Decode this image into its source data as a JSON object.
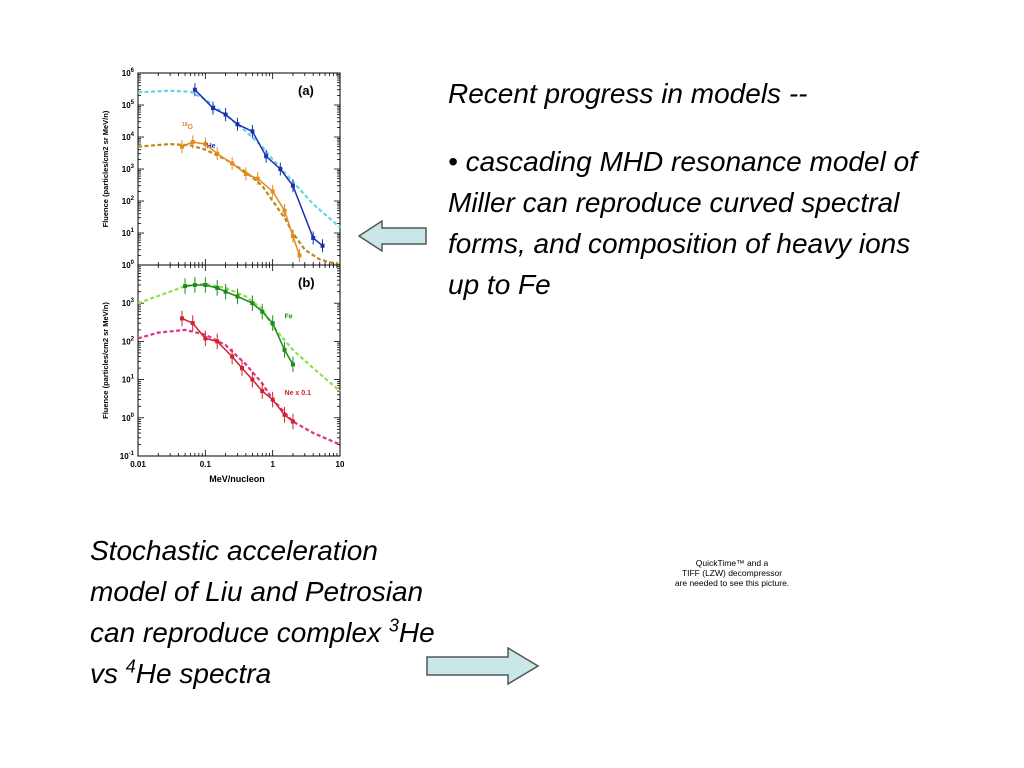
{
  "slide": {
    "heading": "Recent progress in models --",
    "bullet_text": "• cascading MHD resonance model of Miller can reproduce curved spectral forms, and composition of heavy ions up to Fe",
    "caption": {
      "line1": "Stochastic acceleration",
      "line2": "model of Liu and Petrosian",
      "line3_pre": "can reproduce complex ",
      "line3_sup": "3",
      "line3_post": "He",
      "line4_pre": "vs ",
      "line4_sup": "4",
      "line4_post": "He spectra"
    },
    "quicktime_placeholder": {
      "line1": "QuickTime™ and a",
      "line2": "TIFF (LZW) decompressor",
      "line3": "are needed to see this picture."
    },
    "arrow_colors": {
      "fill": "#c9e6e8",
      "stroke": "#555555"
    }
  },
  "chart_data": [
    {
      "type": "line",
      "panel_label": "(a)",
      "xlabel": "",
      "ylabel": "Fluence (particles/cm2 sr MeV/n)",
      "x_scale": "log",
      "y_scale": "log",
      "xlim": [
        0.01,
        10
      ],
      "ylim": [
        1,
        1000000
      ],
      "x_ticks": [
        "0.01",
        "0.1",
        "1",
        "10"
      ],
      "y_ticks": [
        {
          "base": "10",
          "exp": "0"
        },
        {
          "base": "10",
          "exp": "1"
        },
        {
          "base": "10",
          "exp": "2"
        },
        {
          "base": "10",
          "exp": "3"
        },
        {
          "base": "10",
          "exp": "4"
        },
        {
          "base": "10",
          "exp": "5"
        },
        {
          "base": "10",
          "exp": "6"
        }
      ],
      "series": [
        {
          "name": "4He",
          "label_sup": "4",
          "label_base": "He",
          "label_at": [
            0.095,
            4500
          ],
          "color": "#1a2fb0",
          "style": "solid-markers",
          "x": [
            0.07,
            0.13,
            0.2,
            0.3,
            0.5,
            0.8,
            1.3,
            2.0,
            4.0,
            5.5
          ],
          "y": [
            300000,
            80000,
            50000,
            25000,
            15000,
            2500,
            1000,
            300,
            7,
            4
          ]
        },
        {
          "name": "18O",
          "label_sup": "18",
          "label_base": "O",
          "label_at": [
            0.045,
            18000
          ],
          "color": "#e38a1e",
          "style": "solid-markers",
          "x": [
            0.045,
            0.065,
            0.1,
            0.15,
            0.25,
            0.4,
            0.6,
            1.0,
            1.5,
            2.0,
            2.5
          ],
          "y": [
            5000,
            7000,
            6000,
            3000,
            1500,
            700,
            500,
            200,
            50,
            8,
            2
          ]
        },
        {
          "name": "",
          "color": "#5fd6ec",
          "style": "dashed",
          "x": [
            0.01,
            0.03,
            0.06,
            0.1,
            0.2,
            0.4,
            0.7,
            1,
            2,
            4,
            10
          ],
          "y": [
            250000,
            280000,
            260000,
            150000,
            50000,
            15000,
            5000,
            2000,
            400,
            80,
            15
          ]
        },
        {
          "name": "",
          "color": "#b88a1a",
          "style": "dashed",
          "x": [
            0.01,
            0.03,
            0.06,
            0.1,
            0.2,
            0.4,
            0.7,
            1,
            1.5,
            2,
            3,
            5,
            10
          ],
          "y": [
            5000,
            6000,
            5500,
            4000,
            2000,
            800,
            300,
            100,
            30,
            10,
            3,
            1.5,
            1
          ]
        }
      ]
    },
    {
      "type": "line",
      "panel_label": "(b)",
      "xlabel": "MeV/nucleon",
      "ylabel": "Fluence (particles/cm2 sr MeV/n)",
      "x_scale": "log",
      "y_scale": "log",
      "xlim": [
        0.01,
        10
      ],
      "ylim": [
        0.1,
        10000
      ],
      "x_ticks": [
        "0.01",
        "0.1",
        "1",
        "10"
      ],
      "y_ticks": [
        {
          "base": "10",
          "exp": "-1"
        },
        {
          "base": "10",
          "exp": "0"
        },
        {
          "base": "10",
          "exp": "1"
        },
        {
          "base": "10",
          "exp": "2"
        },
        {
          "base": "10",
          "exp": "3"
        }
      ],
      "series": [
        {
          "name": "Fe",
          "label_sup": "",
          "label_base": "Fe",
          "label_at": [
            1.5,
            400
          ],
          "color": "#1e8a1e",
          "style": "solid-markers",
          "x": [
            0.05,
            0.07,
            0.1,
            0.15,
            0.2,
            0.3,
            0.5,
            0.7,
            1.0,
            1.5,
            2.0
          ],
          "y": [
            2800,
            3000,
            3000,
            2500,
            2000,
            1500,
            1000,
            600,
            300,
            60,
            25
          ]
        },
        {
          "name": "Ne x 0.1",
          "label_sup": "",
          "label_base": "Ne x 0.1",
          "label_at": [
            1.5,
            4
          ],
          "color": "#d0202a",
          "style": "solid-markers",
          "x": [
            0.045,
            0.065,
            0.1,
            0.15,
            0.25,
            0.35,
            0.5,
            0.7,
            1.0,
            1.5,
            2.0
          ],
          "y": [
            400,
            300,
            120,
            100,
            40,
            20,
            10,
            5,
            3,
            1.2,
            0.8
          ]
        },
        {
          "name": "",
          "color": "#8fe04a",
          "style": "dashed",
          "x": [
            0.01,
            0.03,
            0.05,
            0.1,
            0.2,
            0.4,
            0.7,
            1,
            2,
            4,
            10
          ],
          "y": [
            1000,
            2000,
            2800,
            3200,
            2500,
            1500,
            700,
            250,
            60,
            20,
            5
          ]
        },
        {
          "name": "",
          "color": "#e0308a",
          "style": "dashed",
          "x": [
            0.01,
            0.02,
            0.05,
            0.1,
            0.2,
            0.4,
            0.7,
            1,
            2,
            4,
            10
          ],
          "y": [
            120,
            170,
            200,
            150,
            80,
            25,
            8,
            3,
            0.8,
            0.4,
            0.2
          ]
        }
      ]
    }
  ]
}
